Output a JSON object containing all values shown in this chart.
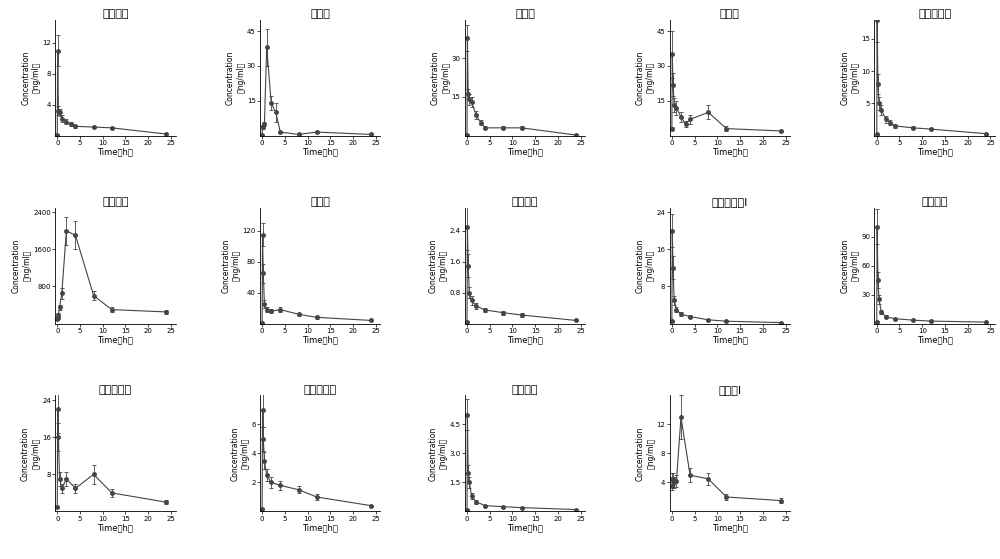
{
  "subplots": [
    {
      "title": "异甘草苷",
      "ylabel": "Concentration （ng/ml）",
      "xlabel": "Time （h）",
      "time": [
        0,
        0.083,
        0.25,
        0.5,
        1,
        2,
        3,
        4,
        8,
        12,
        24
      ],
      "mean": [
        0.05,
        11.0,
        3.2,
        3.0,
        2.2,
        1.8,
        1.5,
        1.2,
        1.1,
        1.0,
        0.2
      ],
      "err": [
        0.02,
        2.0,
        0.6,
        0.5,
        0.4,
        0.3,
        0.25,
        0.2,
        0.15,
        0.15,
        0.05
      ],
      "ylim": [
        0,
        15
      ]
    },
    {
      "title": "甘草素",
      "ylabel": "Concentration （ng/ml）",
      "xlabel": "Time （h）",
      "time": [
        0,
        0.083,
        0.25,
        0.5,
        1,
        2,
        3,
        4,
        8,
        12,
        24
      ],
      "mean": [
        0.3,
        3.5,
        4.0,
        5.0,
        38.0,
        14.0,
        10.0,
        1.5,
        0.5,
        1.5,
        0.5
      ],
      "err": [
        0.05,
        0.5,
        0.7,
        0.8,
        8.0,
        3.0,
        4.0,
        0.3,
        0.1,
        0.3,
        0.1
      ],
      "ylim": [
        0,
        50
      ]
    },
    {
      "title": "甘草苷",
      "ylabel": "Concentration （ng/ml）",
      "xlabel": "Time （h）",
      "time": [
        0,
        0.083,
        0.25,
        0.5,
        1,
        2,
        3,
        4,
        8,
        12,
        24
      ],
      "mean": [
        0.2,
        38.0,
        16.0,
        14.0,
        13.0,
        8.0,
        5.0,
        3.0,
        3.0,
        3.0,
        0.2
      ],
      "err": [
        0.05,
        5.0,
        2.0,
        2.0,
        2.0,
        1.5,
        1.0,
        0.6,
        0.6,
        0.6,
        0.05
      ],
      "ylim": [
        0,
        45
      ]
    },
    {
      "title": "绿原酸",
      "ylabel": "Concentration （ng/ml）",
      "xlabel": "Time （h）",
      "time": [
        0,
        0.083,
        0.25,
        0.5,
        1,
        2,
        3,
        4,
        8,
        12,
        24
      ],
      "mean": [
        3.0,
        35.0,
        22.0,
        13.0,
        12.0,
        8.0,
        5.0,
        7.0,
        10.0,
        3.0,
        2.0
      ],
      "err": [
        0.5,
        10.0,
        5.0,
        3.0,
        3.0,
        2.0,
        1.5,
        2.0,
        3.0,
        1.0,
        0.5
      ],
      "ylim": [
        0,
        50
      ]
    },
    {
      "title": "芚糖甘草苷",
      "ylabel": "Concentration （ng/ml）",
      "xlabel": "Time （h）",
      "time": [
        0,
        0.083,
        0.25,
        0.5,
        1,
        2,
        3,
        4,
        8,
        12,
        24
      ],
      "mean": [
        0.2,
        18.0,
        8.0,
        5.0,
        4.0,
        2.5,
        2.0,
        1.5,
        1.2,
        1.0,
        0.3
      ],
      "err": [
        0.05,
        3.5,
        1.5,
        1.0,
        0.8,
        0.5,
        0.4,
        0.3,
        0.25,
        0.2,
        0.05
      ],
      "ylim": [
        0,
        18
      ]
    },
    {
      "title": "甘草次酸",
      "ylabel": "Concentration （ng/ml）",
      "xlabel": "Time （h）",
      "time": [
        0,
        0.083,
        0.25,
        0.5,
        1,
        2,
        4,
        8,
        12,
        24
      ],
      "mean": [
        100,
        120,
        180,
        350,
        650,
        2000,
        1900,
        600,
        300,
        250
      ],
      "err": [
        20,
        25,
        40,
        60,
        120,
        300,
        300,
        100,
        60,
        40
      ],
      "ylim": [
        0,
        2500
      ]
    },
    {
      "title": "甘草酸",
      "ylabel": "Concentration （ng/ml）",
      "xlabel": "Time （h）",
      "time": [
        0,
        0.083,
        0.25,
        0.5,
        1,
        2,
        4,
        8,
        12,
        24
      ],
      "mean": [
        0.5,
        115.0,
        65.0,
        25.0,
        18.0,
        16.0,
        18.0,
        12.0,
        8.0,
        4.0
      ],
      "err": [
        0.1,
        15.0,
        12.0,
        5.0,
        3.0,
        3.0,
        3.0,
        2.0,
        1.5,
        0.8
      ],
      "ylim": [
        0,
        150
      ]
    },
    {
      "title": "异甘草素",
      "ylabel": "Concentration （ng/ml）",
      "xlabel": "Time （h）",
      "time": [
        0,
        0.083,
        0.25,
        0.5,
        1,
        2,
        4,
        8,
        12,
        24
      ],
      "mean": [
        0.05,
        2.5,
        1.5,
        0.8,
        0.6,
        0.45,
        0.35,
        0.28,
        0.22,
        0.08
      ],
      "err": [
        0.01,
        0.6,
        0.3,
        0.15,
        0.12,
        0.08,
        0.06,
        0.05,
        0.04,
        0.02
      ],
      "ylim": [
        0,
        3
      ]
    },
    {
      "title": "二氢丹参酮Ⅰ",
      "ylabel": "Concentration （ng/ml）",
      "xlabel": "Time （h）",
      "time": [
        0,
        0.083,
        0.25,
        0.5,
        1,
        2,
        4,
        8,
        12,
        24
      ],
      "mean": [
        0.5,
        20.0,
        12.0,
        5.0,
        3.0,
        2.0,
        1.5,
        0.8,
        0.5,
        0.2
      ],
      "err": [
        0.1,
        3.5,
        2.5,
        1.0,
        0.6,
        0.4,
        0.3,
        0.15,
        0.1,
        0.05
      ],
      "ylim": [
        0,
        25
      ]
    },
    {
      "title": "隐丹参酮",
      "ylabel": "Concentration （ng/ml）",
      "xlabel": "Time （h）",
      "time": [
        0,
        0.083,
        0.25,
        0.5,
        1,
        2,
        4,
        8,
        12,
        24
      ],
      "mean": [
        2.0,
        100.0,
        45.0,
        25.0,
        12.0,
        7.0,
        5.0,
        3.5,
        2.5,
        1.5
      ],
      "err": [
        0.3,
        18.0,
        8.0,
        5.0,
        2.5,
        1.5,
        1.0,
        0.7,
        0.5,
        0.3
      ],
      "ylim": [
        0,
        120
      ]
    },
    {
      "title": "毛蕊花糖苷",
      "ylabel": "Concentration （ng/ml）",
      "xlabel": "Time （h）",
      "time": [
        0,
        0.083,
        0.25,
        0.5,
        1,
        2,
        4,
        8,
        12,
        24
      ],
      "mean": [
        1.0,
        22.0,
        16.0,
        7.0,
        5.0,
        7.0,
        5.0,
        8.0,
        4.0,
        2.0
      ],
      "err": [
        0.2,
        5.0,
        3.0,
        1.5,
        1.0,
        1.5,
        1.0,
        2.0,
        0.8,
        0.4
      ],
      "ylim": [
        0,
        25
      ]
    },
    {
      "title": "毛蕊异黄酮",
      "ylabel": "Concentration （ng/ml）",
      "xlabel": "Time （h）",
      "time": [
        0,
        0.083,
        0.25,
        0.5,
        1,
        2,
        4,
        8,
        12,
        24
      ],
      "mean": [
        0.2,
        7.0,
        5.0,
        3.5,
        2.5,
        2.0,
        1.8,
        1.5,
        1.0,
        0.4
      ],
      "err": [
        0.05,
        1.2,
        0.8,
        0.6,
        0.4,
        0.35,
        0.3,
        0.25,
        0.2,
        0.08
      ],
      "ylim": [
        0,
        8
      ]
    },
    {
      "title": "芒柄花素",
      "ylabel": "Concentration （ng/ml）",
      "xlabel": "Time （h）",
      "time": [
        0,
        0.083,
        0.25,
        0.5,
        1,
        2,
        4,
        8,
        12,
        24
      ],
      "mean": [
        0.1,
        5.0,
        2.0,
        1.5,
        0.8,
        0.5,
        0.3,
        0.25,
        0.2,
        0.1
      ],
      "err": [
        0.02,
        0.8,
        0.4,
        0.3,
        0.15,
        0.1,
        0.06,
        0.05,
        0.04,
        0.02
      ],
      "ylim": [
        0,
        6
      ]
    },
    {
      "title": "丹参酮Ⅰ",
      "ylabel": "Concentration （ng/ml）",
      "xlabel": "Time （h）",
      "time": [
        0,
        0.083,
        0.25,
        0.5,
        1,
        2,
        4,
        8,
        12,
        24
      ],
      "mean": [
        3.5,
        4.5,
        4.5,
        4.0,
        4.2,
        13.0,
        5.0,
        4.5,
        2.0,
        1.5
      ],
      "err": [
        0.6,
        0.8,
        0.8,
        0.7,
        0.8,
        3.0,
        1.0,
        0.8,
        0.4,
        0.3
      ],
      "ylim": [
        0,
        16
      ]
    }
  ],
  "line_color": "#444444",
  "marker": "o",
  "markersize": 2.5,
  "linewidth": 0.8,
  "fontsize_title": 8,
  "fontsize_label": 5.5,
  "fontsize_tick": 5,
  "background_color": "#ffffff",
  "grid_rows": 3,
  "grid_cols": 5,
  "xticks": [
    0,
    5,
    10,
    15,
    20,
    25
  ]
}
